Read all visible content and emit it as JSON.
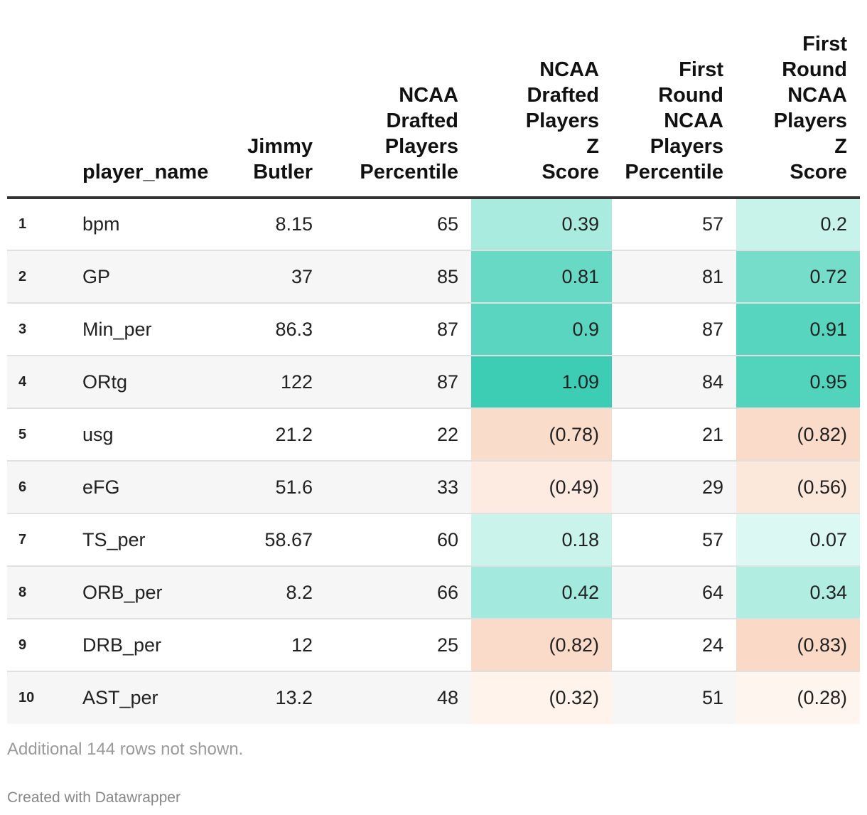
{
  "colors": {
    "pos_light": "#e6fbf6",
    "pos_strong": "#3ccdb4",
    "neg_light": "#fff5ef",
    "neg_strong": "#fad9c7",
    "zebra": "#f6f6f6"
  },
  "chart_data": {
    "type": "table",
    "columns": [
      "",
      "player_name",
      "Jimmy Butler",
      "NCAA Drafted Players Percentile",
      "NCAA Drafted Players Z Score",
      "First Round NCAA Players Percentile",
      "First Round NCAA Players Z Score"
    ],
    "header_lines": [
      [],
      [
        "player_name"
      ],
      [
        "Jimmy",
        "Butler"
      ],
      [
        "NCAA",
        "Drafted",
        "Players",
        "Percentile"
      ],
      [
        "NCAA",
        "Drafted",
        "Players",
        "Z",
        "Score"
      ],
      [
        "First",
        "Round",
        "NCAA",
        "Players",
        "Percentile"
      ],
      [
        "First",
        "Round",
        "NCAA",
        "Players",
        "Z",
        "Score"
      ]
    ],
    "rows": [
      {
        "idx": "1",
        "name": "bpm",
        "butler": "8.15",
        "d_pct": "65",
        "d_z": "0.39",
        "d_zv": 0.39,
        "f_pct": "57",
        "f_z": "0.2",
        "f_zv": 0.2
      },
      {
        "idx": "2",
        "name": "GP",
        "butler": "37",
        "d_pct": "85",
        "d_z": "0.81",
        "d_zv": 0.81,
        "f_pct": "81",
        "f_z": "0.72",
        "f_zv": 0.72
      },
      {
        "idx": "3",
        "name": "Min_per",
        "butler": "86.3",
        "d_pct": "87",
        "d_z": "0.9",
        "d_zv": 0.9,
        "f_pct": "87",
        "f_z": "0.91",
        "f_zv": 0.91
      },
      {
        "idx": "4",
        "name": "ORtg",
        "butler": "122",
        "d_pct": "87",
        "d_z": "1.09",
        "d_zv": 1.09,
        "f_pct": "84",
        "f_z": "0.95",
        "f_zv": 0.95
      },
      {
        "idx": "5",
        "name": "usg",
        "butler": "21.2",
        "d_pct": "22",
        "d_z": "(0.78)",
        "d_zv": -0.78,
        "f_pct": "21",
        "f_z": "(0.82)",
        "f_zv": -0.82
      },
      {
        "idx": "6",
        "name": "eFG",
        "butler": "51.6",
        "d_pct": "33",
        "d_z": "(0.49)",
        "d_zv": -0.49,
        "f_pct": "29",
        "f_z": "(0.56)",
        "f_zv": -0.56
      },
      {
        "idx": "7",
        "name": "TS_per",
        "butler": "58.67",
        "d_pct": "60",
        "d_z": "0.18",
        "d_zv": 0.18,
        "f_pct": "57",
        "f_z": "0.07",
        "f_zv": 0.07
      },
      {
        "idx": "8",
        "name": "ORB_per",
        "butler": "8.2",
        "d_pct": "66",
        "d_z": "0.42",
        "d_zv": 0.42,
        "f_pct": "64",
        "f_z": "0.34",
        "f_zv": 0.34
      },
      {
        "idx": "9",
        "name": "DRB_per",
        "butler": "12",
        "d_pct": "25",
        "d_z": "(0.82)",
        "d_zv": -0.82,
        "f_pct": "24",
        "f_z": "(0.83)",
        "f_zv": -0.83
      },
      {
        "idx": "10",
        "name": "AST_per",
        "butler": "13.2",
        "d_pct": "48",
        "d_z": "(0.32)",
        "d_zv": -0.32,
        "f_pct": "51",
        "f_z": "(0.28)",
        "f_zv": -0.28
      }
    ]
  },
  "footer": {
    "note": "Additional 144 rows not shown.",
    "credit": "Created with Datawrapper"
  }
}
